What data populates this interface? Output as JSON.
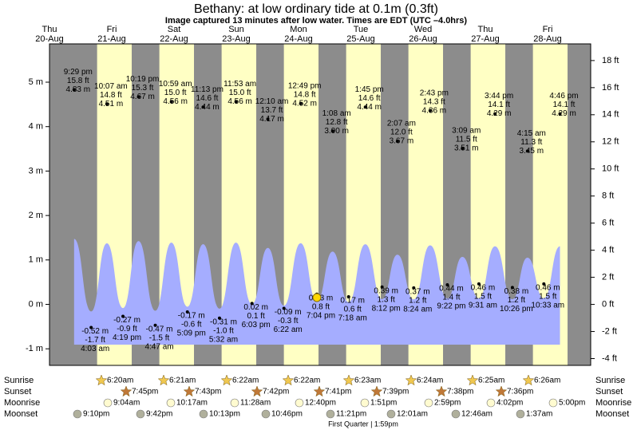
{
  "chart_data": {
    "type": "tide",
    "title": "Bethany: at low  ordinary tide at 0.1m (0.3ft)",
    "subtitle": "Image captured 13 minutes after low water. Times are EDT (UTC –4.0hrs)",
    "days": [
      {
        "name": "Thu",
        "date": "20-Aug"
      },
      {
        "name": "Fri",
        "date": "21-Aug"
      },
      {
        "name": "Sat",
        "date": "22-Aug"
      },
      {
        "name": "Sun",
        "date": "23-Aug"
      },
      {
        "name": "Mon",
        "date": "24-Aug"
      },
      {
        "name": "Tue",
        "date": "25-Aug"
      },
      {
        "name": "Wed",
        "date": "26-Aug"
      },
      {
        "name": "Thu",
        "date": "27-Aug"
      },
      {
        "name": "Fri",
        "date": "28-Aug"
      }
    ],
    "ylim": [
      -1.373,
      5.862
    ],
    "yticks": [
      {
        "value": -1,
        "label": "-1 m"
      },
      {
        "value": 0,
        "label": "0 m"
      },
      {
        "value": 1,
        "label": "1 m"
      },
      {
        "value": 2,
        "label": "2 m"
      },
      {
        "value": 3,
        "label": "3 m"
      },
      {
        "value": 4,
        "label": "4 m"
      },
      {
        "value": 5,
        "label": "5 m"
      }
    ],
    "y2lim": [
      -4.5,
      19.23
    ],
    "y2ticks": [
      {
        "value": -4,
        "label": "-4 ft"
      },
      {
        "value": -2,
        "label": "-2 ft"
      },
      {
        "value": 0,
        "label": "0 ft"
      },
      {
        "value": 2,
        "label": "2 ft"
      },
      {
        "value": 4,
        "label": "4 ft"
      },
      {
        "value": 6,
        "label": "6 ft"
      },
      {
        "value": 8,
        "label": "8 ft"
      },
      {
        "value": 10,
        "label": "10 ft"
      },
      {
        "value": 12,
        "label": "12 ft"
      },
      {
        "value": 14,
        "label": "14 ft"
      },
      {
        "value": 16,
        "label": "16 ft"
      },
      {
        "value": 18,
        "label": "18 ft"
      }
    ],
    "extremes": [
      {
        "kind": "high",
        "time": "9:29 pm",
        "ft": 15.8,
        "ft_label": "15.8 ft",
        "m": 4.83,
        "m_label": "4.83 m"
      },
      {
        "kind": "low",
        "time": "4:03 am",
        "ft": -1.7,
        "ft_label": "-1.7 ft",
        "m": -0.52,
        "m_label": "-0.52 m"
      },
      {
        "kind": "high",
        "time": "10:07 am",
        "ft": 14.8,
        "ft_label": "14.8 ft",
        "m": 4.51,
        "m_label": "4.51 m"
      },
      {
        "kind": "low",
        "time": "4:19 pm",
        "ft": -0.9,
        "ft_label": "-0.9 ft",
        "m": -0.27,
        "m_label": "-0.27 m"
      },
      {
        "kind": "high",
        "time": "10:19 pm",
        "ft": 15.3,
        "ft_label": "15.3 ft",
        "m": 4.67,
        "m_label": "4.67 m"
      },
      {
        "kind": "low",
        "time": "4:47 am",
        "ft": -1.5,
        "ft_label": "-1.5 ft",
        "m": -0.47,
        "m_label": "-0.47 m"
      },
      {
        "kind": "high",
        "time": "10:59 am",
        "ft": 15.0,
        "ft_label": "15.0 ft",
        "m": 4.56,
        "m_label": "4.56 m"
      },
      {
        "kind": "low",
        "time": "5:09 pm",
        "ft": -0.6,
        "ft_label": "-0.6 ft",
        "m": -0.17,
        "m_label": "-0.17 m"
      },
      {
        "kind": "high",
        "time": "11:13 pm",
        "ft": 14.6,
        "ft_label": "14.6 ft",
        "m": 4.44,
        "m_label": "4.44 m"
      },
      {
        "kind": "low",
        "time": "5:32 am",
        "ft": -1.0,
        "ft_label": "-1.0 ft",
        "m": -0.31,
        "m_label": "-0.31 m"
      },
      {
        "kind": "high",
        "time": "11:53 am",
        "ft": 15.0,
        "ft_label": "15.0 ft",
        "m": 4.56,
        "m_label": "4.56 m"
      },
      {
        "kind": "low",
        "time": "6:03 pm",
        "ft": 0.1,
        "ft_label": "0.1 ft",
        "m": 0.02,
        "m_label": "0.02 m"
      },
      {
        "kind": "high",
        "time": "12:10 am",
        "ft": 13.7,
        "ft_label": "13.7 ft",
        "m": 4.17,
        "m_label": "4.17 m"
      },
      {
        "kind": "low",
        "time": "6:22 am",
        "ft": -0.3,
        "ft_label": "-0.3 ft",
        "m": -0.09,
        "m_label": "-0.09 m"
      },
      {
        "kind": "high",
        "time": "12:49 pm",
        "ft": 14.8,
        "ft_label": "14.8 ft",
        "m": 4.52,
        "m_label": "4.52 m"
      },
      {
        "kind": "low",
        "time": "7:04 pm",
        "ft": 0.8,
        "ft_label": "0.8 ft",
        "m": 0.23,
        "m_label": "0.23 m"
      },
      {
        "kind": "high",
        "time": "1:08 am",
        "ft": 12.8,
        "ft_label": "12.8 ft",
        "m": 3.9,
        "m_label": "3.90 m"
      },
      {
        "kind": "low",
        "time": "7:18 am",
        "ft": 0.6,
        "ft_label": "0.6 ft",
        "m": 0.17,
        "m_label": "0.17 m"
      },
      {
        "kind": "high",
        "time": "1:45 pm",
        "ft": 14.6,
        "ft_label": "14.6 ft",
        "m": 4.44,
        "m_label": "4.44 m"
      },
      {
        "kind": "low",
        "time": "8:12 pm",
        "ft": 1.3,
        "ft_label": "1.3 ft",
        "m": 0.39,
        "m_label": "0.39 m"
      },
      {
        "kind": "high",
        "time": "2:07 am",
        "ft": 12.0,
        "ft_label": "12.0 ft",
        "m": 3.67,
        "m_label": "3.67 m"
      },
      {
        "kind": "low",
        "time": "8:24 am",
        "ft": 1.2,
        "ft_label": "1.2 ft",
        "m": 0.37,
        "m_label": "0.37 m"
      },
      {
        "kind": "high",
        "time": "2:43 pm",
        "ft": 14.3,
        "ft_label": "14.3 ft",
        "m": 4.36,
        "m_label": "4.36 m"
      },
      {
        "kind": "low",
        "time": "9:22 pm",
        "ft": 1.4,
        "ft_label": "1.4 ft",
        "m": 0.44,
        "m_label": "0.44 m"
      },
      {
        "kind": "high",
        "time": "3:09 am",
        "ft": 11.5,
        "ft_label": "11.5 ft",
        "m": 3.51,
        "m_label": "3.51 m"
      },
      {
        "kind": "low",
        "time": "9:31 am",
        "ft": 1.5,
        "ft_label": "1.5 ft",
        "m": 0.46,
        "m_label": "0.46 m"
      },
      {
        "kind": "high",
        "time": "3:44 pm",
        "ft": 14.1,
        "ft_label": "14.1 ft",
        "m": 4.29,
        "m_label": "4.29 m"
      },
      {
        "kind": "low",
        "time": "10:26 pm",
        "ft": 1.2,
        "ft_label": "1.2 ft",
        "m": 0.38,
        "m_label": "0.38 m"
      },
      {
        "kind": "high",
        "time": "4:15 am",
        "ft": 11.3,
        "ft_label": "11.3 ft",
        "m": 3.45,
        "m_label": "3.45 m"
      },
      {
        "kind": "low",
        "time": "10:33 am",
        "ft": 1.5,
        "ft_label": "1.5 ft",
        "m": 0.46,
        "m_label": "0.46 m"
      },
      {
        "kind": "high",
        "time": "4:46 pm",
        "ft": 14.1,
        "ft_label": "14.1 ft",
        "m": 4.29,
        "m_label": "4.29 m"
      }
    ],
    "rows": {
      "sunrise": "Sunrise",
      "sunset": "Sunset",
      "moonrise": "Moonrise",
      "moonset": "Moonset"
    },
    "sunrise": [
      "6:20am",
      "6:21am",
      "6:22am",
      "6:22am",
      "6:23am",
      "6:24am",
      "6:25am",
      "6:26am"
    ],
    "sunset": [
      "7:45pm",
      "7:43pm",
      "7:42pm",
      "7:41pm",
      "7:39pm",
      "7:38pm",
      "7:36pm"
    ],
    "moonrise": [
      "9:04am",
      "10:17am",
      "11:28am",
      "12:40pm",
      "1:51pm",
      "2:59pm",
      "4:02pm",
      "5:00pm"
    ],
    "moonset": [
      "9:10pm",
      "9:42pm",
      "10:13pm",
      "10:46pm",
      "11:21pm",
      "12:01am",
      "12:46am",
      "1:37am"
    ],
    "moon_phase": "First Quarter | 1:59pm",
    "colors": {
      "day": "#ffffc4",
      "night": "#8c8c8c",
      "water": "#a5adff",
      "dates": "#ff0000"
    }
  }
}
